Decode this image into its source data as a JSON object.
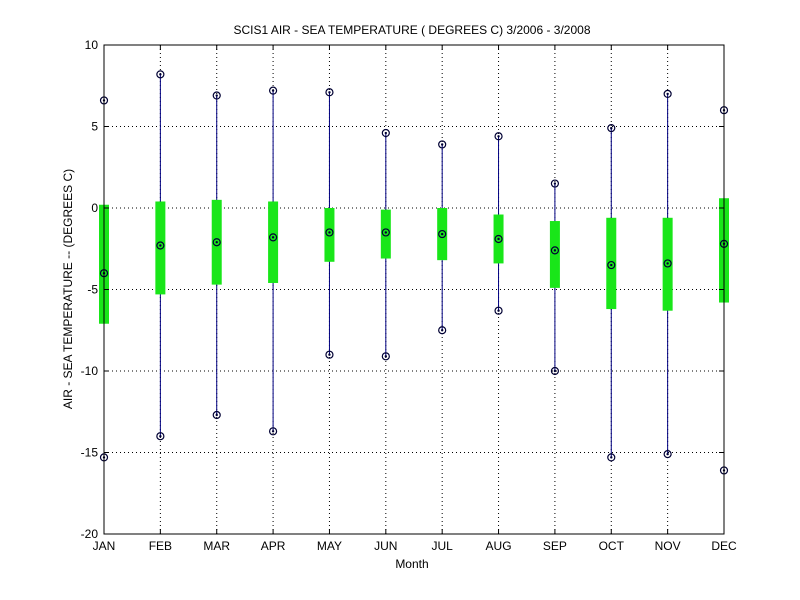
{
  "chart_data": {
    "type": "box",
    "title": "SCIS1  AIR - SEA TEMPERATURE ( DEGREES C) 3/2006 - 3/2008",
    "xlabel": "Month",
    "ylabel": "AIR - SEA TEMPERATURE -- (DEGREES C)",
    "categories": [
      "JAN",
      "FEB",
      "MAR",
      "APR",
      "MAY",
      "JUN",
      "JUL",
      "AUG",
      "SEP",
      "OCT",
      "NOV",
      "DEC"
    ],
    "ylim": [
      -20,
      10
    ],
    "yticks": [
      -20,
      -15,
      -10,
      -5,
      0,
      5,
      10
    ],
    "grid": true,
    "series": [
      {
        "max": [
          6.6,
          8.2,
          6.9,
          7.2,
          7.1,
          4.6,
          3.9,
          4.4,
          1.5,
          4.9,
          7.0,
          6.0
        ],
        "upper": [
          0.2,
          0.4,
          0.5,
          0.4,
          0.0,
          -0.1,
          0.0,
          -0.4,
          -0.8,
          -0.6,
          -0.6,
          0.6
        ],
        "median": [
          -4.0,
          -2.3,
          -2.1,
          -1.8,
          -1.5,
          -1.5,
          -1.6,
          -1.9,
          -2.6,
          -3.5,
          -3.4,
          -2.2
        ],
        "lower": [
          -7.1,
          -5.3,
          -4.7,
          -4.6,
          -3.3,
          -3.1,
          -3.2,
          -3.4,
          -4.9,
          -6.2,
          -6.3,
          -5.8
        ],
        "min": [
          -15.3,
          -14.0,
          -12.7,
          -13.7,
          -9.0,
          -9.1,
          -7.5,
          -6.3,
          -10.0,
          -15.3,
          -15.1,
          -16.1
        ]
      }
    ],
    "colors": {
      "whisker": "#000080",
      "box": "#19e619",
      "marker": "#000033",
      "grid": "#000000"
    }
  }
}
